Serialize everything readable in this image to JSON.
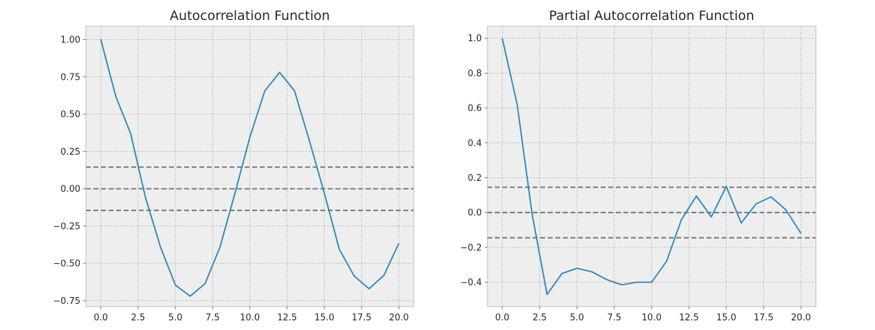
{
  "chart_data": [
    {
      "type": "line",
      "title": "Autocorrelation Function",
      "xlabel": "",
      "ylabel": "",
      "xlim": [
        -1,
        21
      ],
      "ylim": [
        -0.79,
        1.09
      ],
      "xticks": [
        0,
        2.5,
        5,
        7.5,
        10,
        12.5,
        15,
        17.5,
        20
      ],
      "xtick_labels": [
        "0.0",
        "2.5",
        "5.0",
        "7.5",
        "10.0",
        "12.5",
        "15.0",
        "17.5",
        "20.0"
      ],
      "yticks": [
        1.0,
        0.75,
        0.5,
        0.25,
        0.0,
        -0.25,
        -0.5,
        -0.75
      ],
      "ytick_labels": [
        "1.00",
        "0.75",
        "0.50",
        "0.25",
        "0.00",
        "−0.25",
        "−0.50",
        "−0.75"
      ],
      "grid": true,
      "series": [
        {
          "color": "#348abd",
          "x": [
            0,
            1,
            2,
            3,
            4,
            5,
            6,
            7,
            8,
            9,
            10,
            11,
            12,
            13,
            14,
            15,
            16,
            17,
            18,
            19,
            20
          ],
          "values": [
            1.0,
            0.62,
            0.37,
            -0.06,
            -0.39,
            -0.645,
            -0.72,
            -0.635,
            -0.39,
            -0.03,
            0.345,
            0.655,
            0.78,
            0.655,
            0.32,
            -0.03,
            -0.405,
            -0.585,
            -0.67,
            -0.58,
            -0.365
          ]
        }
      ],
      "reference_lines": [
        {
          "y": 0.145,
          "color": "#808080",
          "style": "dashed"
        },
        {
          "y": 0.0,
          "color": "#808080",
          "style": "dashed"
        },
        {
          "y": -0.145,
          "color": "#808080",
          "style": "dashed"
        }
      ]
    },
    {
      "type": "line",
      "title": "Partial Autocorrelation Function",
      "xlabel": "",
      "ylabel": "",
      "xlim": [
        -1,
        21
      ],
      "ylim": [
        -0.54,
        1.07
      ],
      "xticks": [
        0,
        2.5,
        5,
        7.5,
        10,
        12.5,
        15,
        17.5,
        20
      ],
      "xtick_labels": [
        "0.0",
        "2.5",
        "5.0",
        "7.5",
        "10.0",
        "12.5",
        "15.0",
        "17.5",
        "20.0"
      ],
      "yticks": [
        1.0,
        0.8,
        0.6,
        0.4,
        0.2,
        0.0,
        -0.2,
        -0.4
      ],
      "ytick_labels": [
        "1.0",
        "0.8",
        "0.6",
        "0.4",
        "0.2",
        "0.0",
        "−0.2",
        "−0.4"
      ],
      "grid": true,
      "series": [
        {
          "color": "#348abd",
          "x": [
            0,
            1,
            2,
            3,
            4,
            5,
            6,
            7,
            8,
            9,
            10,
            11,
            12,
            13,
            14,
            15,
            16,
            17,
            18,
            19,
            20
          ],
          "values": [
            1.0,
            0.62,
            -0.01,
            -0.47,
            -0.35,
            -0.32,
            -0.34,
            -0.385,
            -0.415,
            -0.4,
            -0.4,
            -0.28,
            -0.04,
            0.095,
            -0.025,
            0.15,
            -0.06,
            0.05,
            0.09,
            0.015,
            -0.12
          ]
        }
      ],
      "reference_lines": [
        {
          "y": 0.145,
          "color": "#808080",
          "style": "dashed"
        },
        {
          "y": 0.0,
          "color": "#808080",
          "style": "dashed"
        },
        {
          "y": -0.145,
          "color": "#808080",
          "style": "dashed"
        }
      ]
    }
  ]
}
